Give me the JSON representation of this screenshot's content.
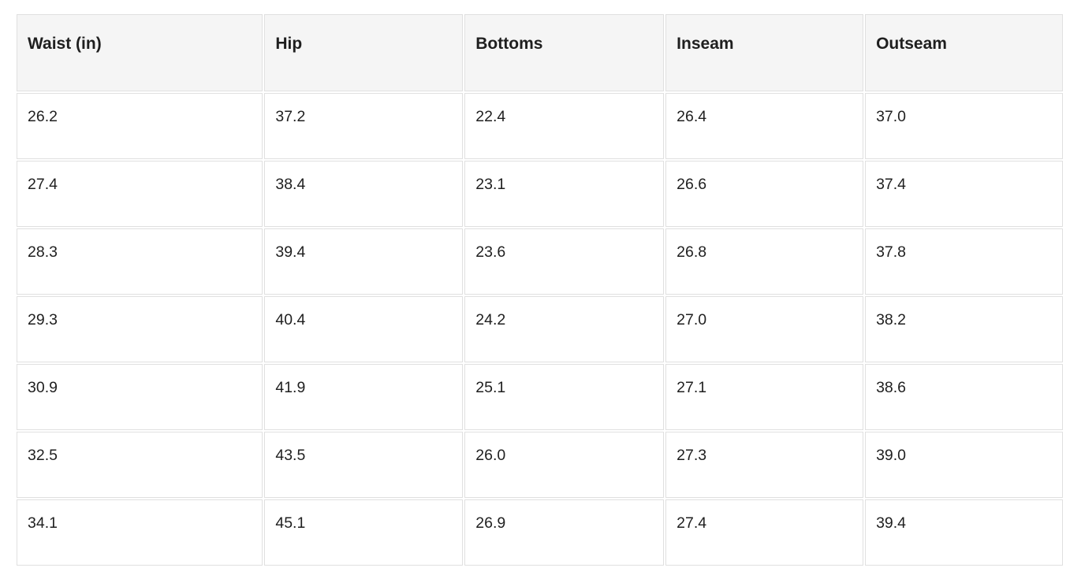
{
  "table": {
    "columns": [
      "Waist (in)",
      "Hip",
      "Bottoms",
      "Inseam",
      "Outseam"
    ],
    "rows": [
      [
        "26.2",
        "37.2",
        "22.4",
        "26.4",
        "37.0"
      ],
      [
        "27.4",
        "38.4",
        "23.1",
        "26.6",
        "37.4"
      ],
      [
        "28.3",
        "39.4",
        "23.6",
        "26.8",
        "37.8"
      ],
      [
        "29.3",
        "40.4",
        "24.2",
        "27.0",
        "38.2"
      ],
      [
        "30.9",
        "41.9",
        "25.1",
        "27.1",
        "38.6"
      ],
      [
        "32.5",
        "43.5",
        "26.0",
        "27.3",
        "39.0"
      ],
      [
        "34.1",
        "45.1",
        "26.9",
        "27.4",
        "39.4"
      ]
    ]
  },
  "colors": {
    "header_bg": "#f5f5f5",
    "cell_border": "#e0e0e0",
    "text": "#1f1f1f",
    "page_bg": "#ffffff"
  }
}
